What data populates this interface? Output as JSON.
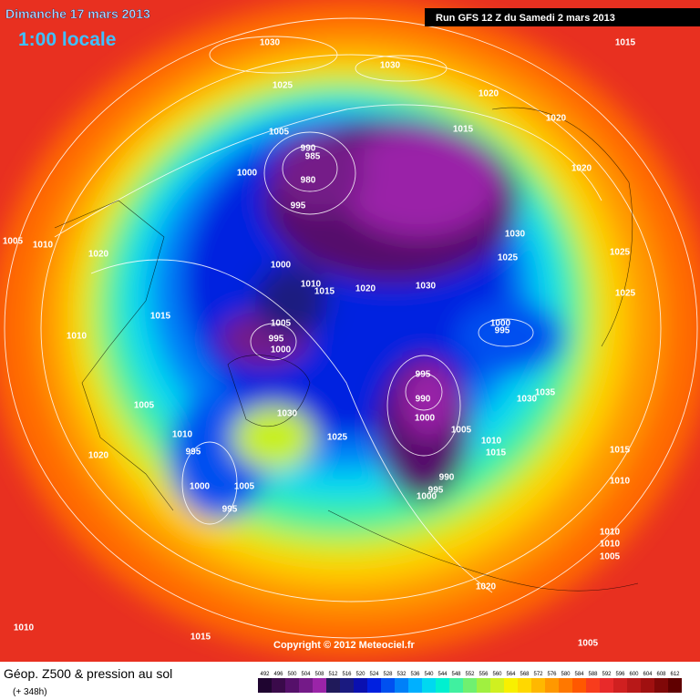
{
  "header": {
    "date": "Dimanche 17 mars 2013",
    "time": "1:00 locale",
    "run": "Run GFS 12 Z du Samedi 2 mars 2013"
  },
  "footer": {
    "title": "Géop. Z500 & pression au sol",
    "subtitle": "(+ 348h)",
    "copyright": "Copyright © 2012 Meteociel.fr"
  },
  "legend": {
    "levels": [
      492,
      496,
      500,
      504,
      508,
      512,
      516,
      520,
      524,
      528,
      532,
      536,
      540,
      544,
      548,
      552,
      556,
      560,
      564,
      568,
      572,
      576,
      580,
      584,
      588,
      592,
      596,
      600,
      604,
      608,
      612
    ],
    "colors": [
      "#1f0530",
      "#3a0a4a",
      "#55106a",
      "#741a88",
      "#9a24a8",
      "#201a5a",
      "#1a1a80",
      "#0a10b0",
      "#0020e0",
      "#0050f0",
      "#0080f8",
      "#00b0ff",
      "#00d8f0",
      "#00f0d0",
      "#40f0a0",
      "#70f070",
      "#a0f040",
      "#d0f020",
      "#f8f000",
      "#ffd800",
      "#ffb800",
      "#ff9800",
      "#ff7800",
      "#ff5800",
      "#f83c1c",
      "#e82a2a",
      "#d02020",
      "#b81818",
      "#a01010",
      "#800808",
      "#600000"
    ]
  },
  "isobar_labels": [
    1030,
    1030,
    1015,
    1025,
    1020,
    1020,
    1015,
    1005,
    990,
    985,
    980,
    1000,
    1020,
    995,
    1005,
    1010,
    1020,
    1030,
    1025,
    1025,
    1000,
    1010,
    1015,
    1020,
    1030,
    1025,
    1015,
    1005,
    1000,
    995,
    1010,
    995,
    1000,
    995,
    1035,
    1030,
    990,
    1005,
    1030,
    1000,
    1025,
    1005,
    1010,
    1010,
    995,
    1015,
    1015,
    1020,
    990,
    1010,
    1000,
    1005,
    995,
    1000,
    995,
    1010,
    1010,
    1005,
    1020,
    1010,
    1015,
    1005
  ]
}
